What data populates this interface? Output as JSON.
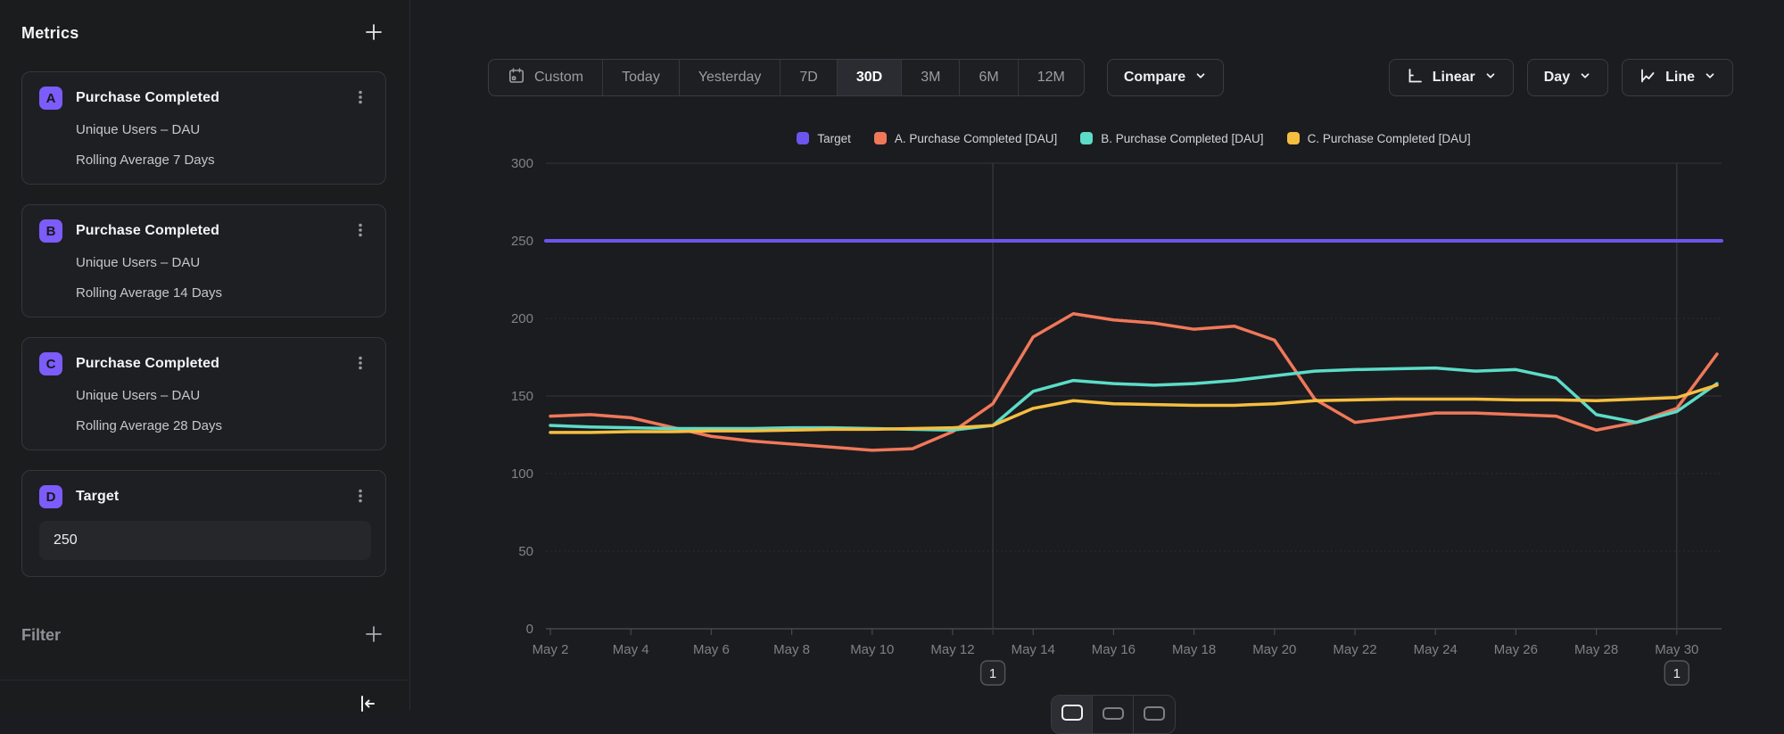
{
  "colors": {
    "accent": "#7c5cfa"
  },
  "sidebar": {
    "title": "Metrics",
    "cards": [
      {
        "badge": "A",
        "title": "Purchase Completed",
        "measure": "Unique Users – DAU",
        "transform": "Rolling Average 7 Days"
      },
      {
        "badge": "B",
        "title": "Purchase Completed",
        "measure": "Unique Users – DAU",
        "transform": "Rolling Average 14 Days"
      },
      {
        "badge": "C",
        "title": "Purchase Completed",
        "measure": "Unique Users – DAU",
        "transform": "Rolling Average 28 Days"
      }
    ],
    "target": {
      "badge": "D",
      "title": "Target",
      "value": "250"
    },
    "filter_label": "Filter"
  },
  "toolbar": {
    "ranges": [
      "Custom",
      "Today",
      "Yesterday",
      "7D",
      "30D",
      "3M",
      "6M",
      "12M"
    ],
    "selected_range": "30D",
    "compare_label": "Compare",
    "scale_label": "Linear",
    "interval_label": "Day",
    "chart_type_label": "Line"
  },
  "chart_data": {
    "type": "line",
    "title": "",
    "x": [
      "May 2",
      "May 3",
      "May 4",
      "May 5",
      "May 6",
      "May 7",
      "May 8",
      "May 9",
      "May 10",
      "May 11",
      "May 12",
      "May 13",
      "May 14",
      "May 15",
      "May 16",
      "May 17",
      "May 18",
      "May 19",
      "May 20",
      "May 21",
      "May 22",
      "May 23",
      "May 24",
      "May 25",
      "May 26",
      "May 27",
      "May 28",
      "May 29",
      "May 30",
      "May 31"
    ],
    "x_tick_labels": [
      "May 2",
      "May 4",
      "May 6",
      "May 8",
      "May 10",
      "May 12",
      "May 14",
      "May 16",
      "May 18",
      "May 20",
      "May 22",
      "May 24",
      "May 26",
      "May 28",
      "May 30"
    ],
    "ylim": [
      0,
      300
    ],
    "yticks": [
      0,
      50,
      100,
      150,
      200,
      250,
      300
    ],
    "grid": true,
    "legend_position": "top-center",
    "series": [
      {
        "name": "Target",
        "color": "#6c55ee",
        "extend_full_width": true,
        "values": [
          250,
          250,
          250,
          250,
          250,
          250,
          250,
          250,
          250,
          250,
          250,
          250,
          250,
          250,
          250,
          250,
          250,
          250,
          250,
          250,
          250,
          250,
          250,
          250,
          250,
          250,
          250,
          250,
          250,
          250
        ]
      },
      {
        "name": "A. Purchase Completed [DAU]",
        "color": "#f0785a",
        "values": [
          137,
          138,
          136,
          130,
          124,
          121,
          119,
          117,
          115,
          116,
          127,
          145,
          188,
          203,
          199,
          197,
          193,
          195,
          186,
          148,
          133,
          136,
          139,
          139,
          138,
          137,
          128,
          133,
          142,
          177
        ]
      },
      {
        "name": "B. Purchase Completed [DAU]",
        "color": "#5cdcc9",
        "values": [
          131,
          130,
          129.5,
          129,
          129,
          129,
          129.5,
          129.5,
          129,
          128.5,
          128,
          131,
          153,
          160,
          158,
          157,
          158,
          160,
          163,
          166,
          167,
          167.5,
          168,
          166,
          167,
          161.5,
          138,
          133,
          140,
          158
        ]
      },
      {
        "name": "C. Purchase Completed [DAU]",
        "color": "#f6be40",
        "values": [
          126.5,
          126.5,
          127,
          127,
          127.5,
          127.5,
          128,
          128.5,
          128.5,
          129,
          129.5,
          131,
          142,
          147,
          145,
          144.5,
          144,
          144,
          145,
          147,
          147.5,
          148,
          148,
          148,
          147.5,
          147.5,
          147,
          148,
          149,
          157
        ]
      }
    ],
    "annotations": [
      {
        "x": "May 13",
        "label": "1"
      },
      {
        "x": "May 30",
        "label": "1"
      }
    ]
  }
}
